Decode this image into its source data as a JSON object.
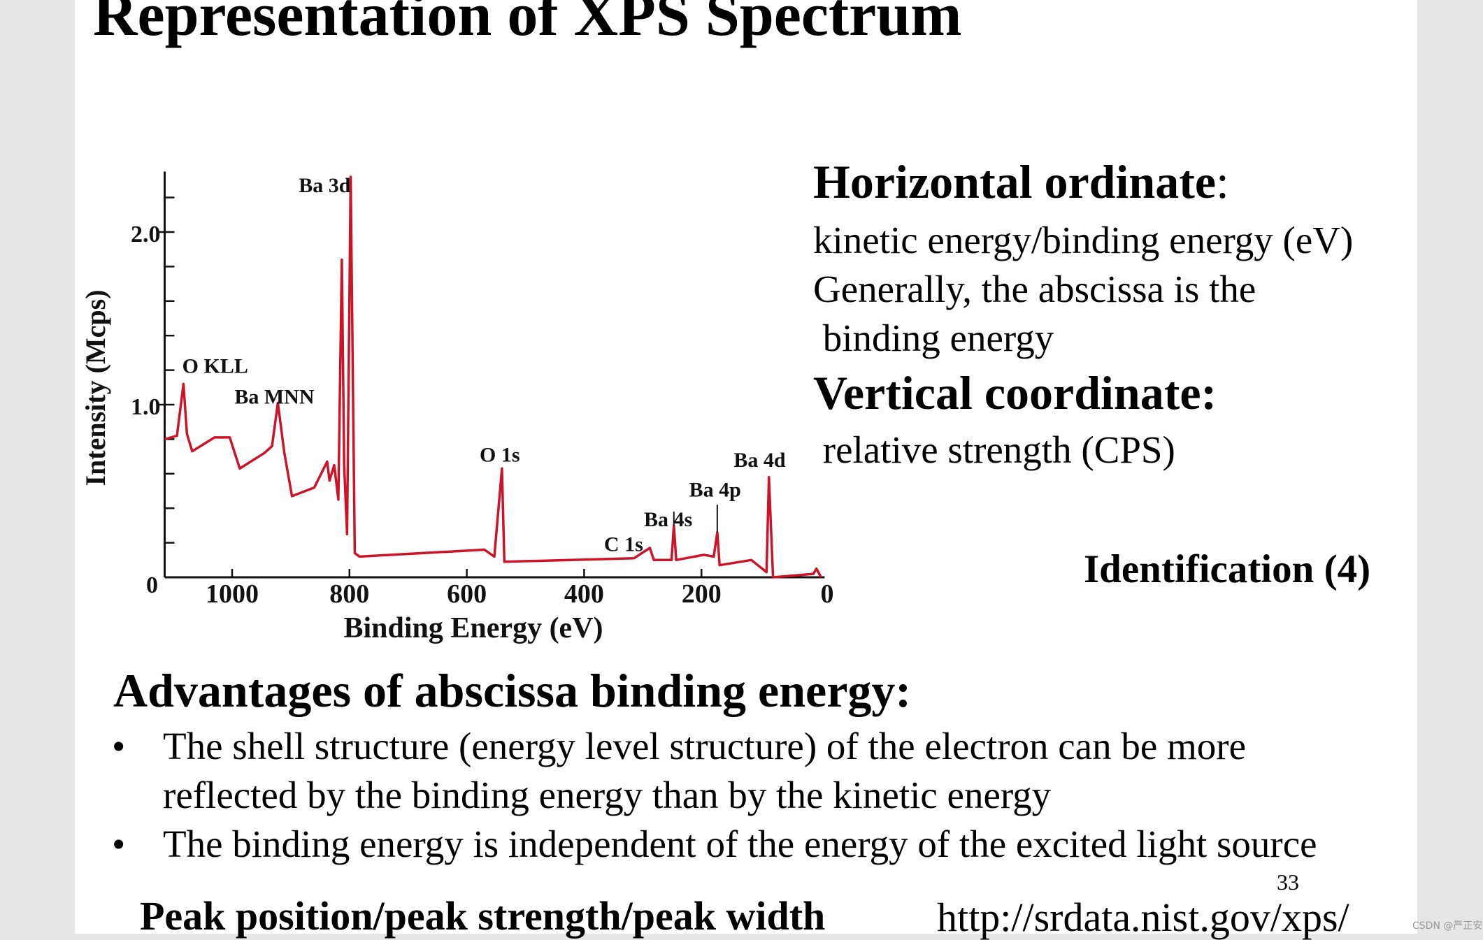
{
  "slide": {
    "title": "Representation of XPS Spectrum",
    "horizontal_heading": "Horizontal ordinate",
    "horizontal_colon": ":",
    "horizontal_lines": [
      "kinetic energy/binding energy (eV)",
      "Generally, the abscissa is the",
      " binding energy"
    ],
    "vertical_heading": "Vertical coordinate:",
    "vertical_line": " relative strength (CPS)",
    "identification": "Identification (4)",
    "advantages_heading": "Advantages of abscissa binding energy:",
    "bullet_symbol": "•",
    "bullets": [
      {
        "lines": [
          "The shell structure (energy level structure) of the electron can be more",
          "reflected by the binding energy than by the kinetic energy"
        ]
      },
      {
        "lines": [
          "The binding energy is independent of the energy of the excited light source"
        ]
      }
    ],
    "peak_text": "Peak position/peak strength/peak width",
    "url": "http://srdata.nist.gov/xps/",
    "page_number": "33",
    "watermark": "CSDN @严正安"
  },
  "chart_data": {
    "type": "line",
    "xlabel": "Binding Energy (eV)",
    "ylabel": "Intensity (Mcps)",
    "x_reversed": true,
    "xlim": [
      1115,
      -10
    ],
    "ylim": [
      0,
      2.35
    ],
    "x_ticks": [
      1000,
      800,
      600,
      400,
      200,
      0
    ],
    "x_tick_labels": [
      "1000",
      "800",
      "600",
      "400",
      "200",
      "0"
    ],
    "y_ticks_labeled": [
      0,
      1.0,
      2.0
    ],
    "y_tick_labels": [
      "0",
      "1.0",
      "2.0"
    ],
    "y_minor_step": 0.2,
    "grid": false,
    "line_color": "#cc1428",
    "series": [
      {
        "x": [
          1115,
          1094,
          1083,
          1077,
          1068,
          1030,
          1004,
          987,
          945,
          932,
          922,
          911,
          898,
          860,
          838,
          834,
          826,
          819,
          813,
          809,
          804,
          798,
          791,
          783,
          570,
          553,
          540,
          536,
          315,
          288,
          281,
          251,
          247,
          243,
          196,
          179,
          173,
          169,
          115,
          89,
          85,
          78,
          9,
          4,
          -4
        ],
        "y": [
          0.8,
          0.82,
          1.12,
          0.83,
          0.73,
          0.81,
          0.81,
          0.63,
          0.72,
          0.76,
          1.01,
          0.72,
          0.47,
          0.52,
          0.67,
          0.56,
          0.65,
          0.45,
          1.84,
          0.65,
          0.25,
          2.32,
          0.14,
          0.12,
          0.16,
          0.12,
          0.63,
          0.09,
          0.11,
          0.17,
          0.1,
          0.1,
          0.3,
          0.1,
          0.13,
          0.12,
          0.26,
          0.07,
          0.1,
          0.03,
          0.58,
          0.0,
          0.02,
          0.05,
          0.0
        ]
      }
    ],
    "annotations": [
      {
        "text": "Ba 3d",
        "x": 798,
        "y": 2.23,
        "anchor": "end"
      },
      {
        "text": "O KLL",
        "x": 1085,
        "y": 1.16,
        "anchor": "start"
      },
      {
        "text": "Ba MNN",
        "x": 996,
        "y": 1.03,
        "anchor": "start"
      },
      {
        "text": "O 1s",
        "x": 578,
        "y": 0.67,
        "anchor": "start"
      },
      {
        "text": "Ba 4d",
        "x": 145,
        "y": 0.6,
        "anchor": "start"
      },
      {
        "text": "Ba 4p",
        "x": 221,
        "y": 0.46,
        "anchor": "start"
      },
      {
        "text": "Ba 4s",
        "x": 298,
        "y": 0.32,
        "anchor": "start"
      },
      {
        "text": "C 1s",
        "x": 366,
        "y": 0.2,
        "anchor": "start"
      }
    ]
  }
}
